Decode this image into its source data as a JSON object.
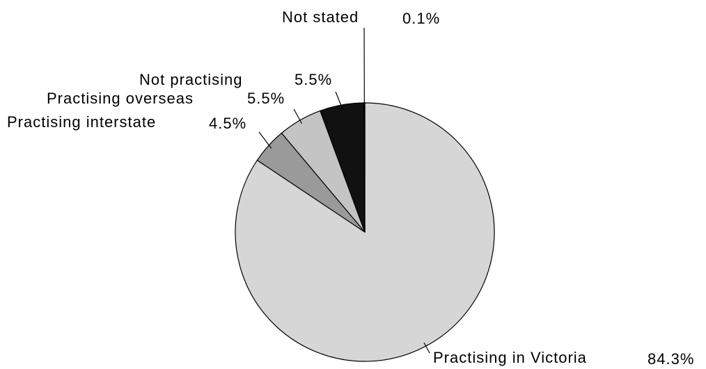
{
  "chart_data": {
    "type": "pie",
    "labels": [
      "Practising in Victoria",
      "Practising interstate",
      "Practising overseas",
      "Not practising",
      "Not stated"
    ],
    "values": [
      84.3,
      4.5,
      5.5,
      5.5,
      0.1
    ],
    "value_labels": [
      "84.3%",
      "4.5%",
      "5.5%",
      "5.5%",
      "0.1%"
    ],
    "colors": [
      "#d6d6d6",
      "#9a9a9a",
      "#c4c4c4",
      "#111111",
      "#000000"
    ]
  }
}
